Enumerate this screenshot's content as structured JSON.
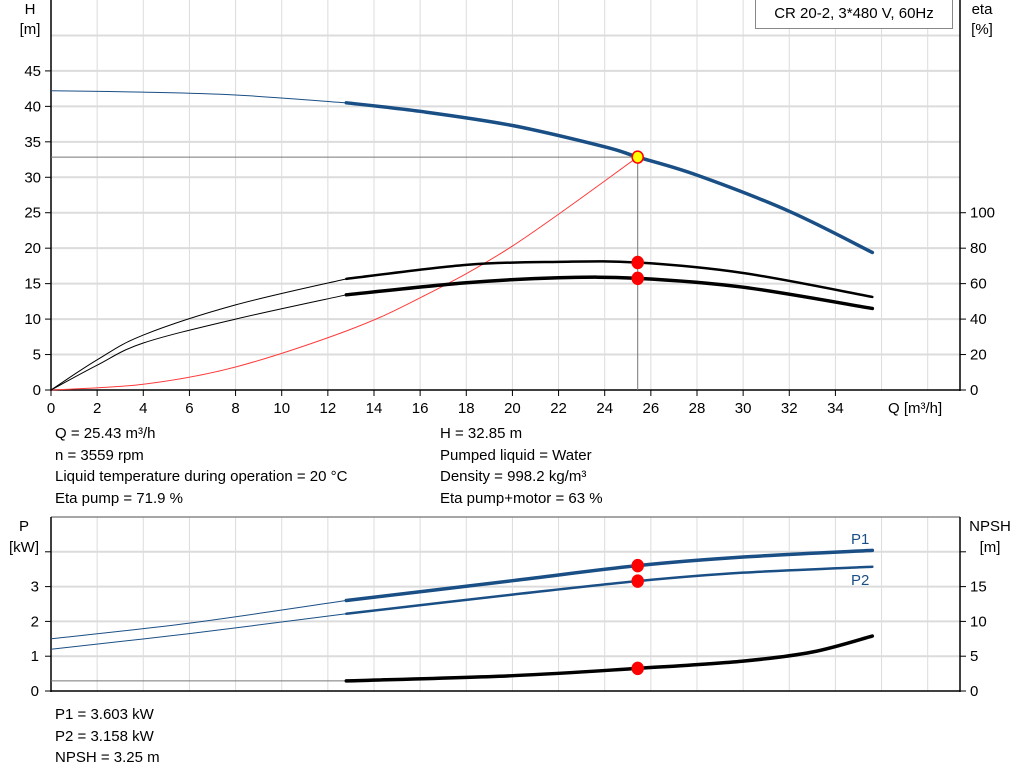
{
  "legend_title": "CR 20-2, 3*480 V, 60Hz",
  "colors": {
    "pump_curve": "#1a4f86",
    "efficiency": "#000000",
    "system_curve": "#ff3b3b",
    "point": "#ff0000",
    "duty_point_fill": "#ffff00",
    "grid": "#dcdcdc"
  },
  "info_top": {
    "left": [
      "Q = 25.43 m³/h",
      "n = 3559 rpm",
      "Liquid temperature during operation = 20 °C",
      "Eta pump = 71.9 %"
    ],
    "right": [
      "H = 32.85 m",
      "Pumped liquid = Water",
      "Density = 998.2 kg/m³",
      "Eta pump+motor = 63 %"
    ]
  },
  "info_bottom": [
    "P1 = 3.603 kW",
    "P2 = 3.158 kW",
    "NPSH = 3.25 m"
  ],
  "chart_data": [
    {
      "type": "line",
      "xlabel": "Q [m³/h]",
      "ylabel_left": [
        "H",
        "[m]"
      ],
      "ylabel_right": [
        "eta",
        "[%]"
      ],
      "xlim": [
        0,
        39.4
      ],
      "ylim_left": [
        0,
        55
      ],
      "ylim_right": [
        0,
        220
      ],
      "x_ticks": [
        0,
        2,
        4,
        6,
        8,
        10,
        12,
        14,
        16,
        18,
        20,
        22,
        24,
        26,
        28,
        30,
        32,
        34
      ],
      "y_ticks_left": [
        0,
        5,
        10,
        15,
        20,
        25,
        30,
        35,
        40,
        45
      ],
      "y_ticks_right": [
        0,
        20,
        40,
        60,
        80,
        100
      ],
      "grid": true,
      "operating_range_start": 12.8,
      "duty_point": {
        "Q": 25.43,
        "H": 32.85,
        "eta_pump": 71.9,
        "eta_pump_motor": 63
      },
      "series": [
        {
          "id": "H",
          "axis": "left",
          "points": [
            [
              0,
              42.2
            ],
            [
              4,
              42.0
            ],
            [
              8,
              41.6
            ],
            [
              12.8,
              40.5
            ],
            [
              16,
              39.3
            ],
            [
              20,
              37.3
            ],
            [
              24,
              34.3
            ],
            [
              25.43,
              32.85
            ],
            [
              28,
              30.3
            ],
            [
              32,
              25.2
            ],
            [
              35.6,
              19.4
            ]
          ]
        },
        {
          "id": "eta_pump",
          "axis": "right",
          "points": [
            [
              0,
              0
            ],
            [
              2,
              17
            ],
            [
              4,
              31
            ],
            [
              8,
              48
            ],
            [
              12.8,
              62.7
            ],
            [
              18,
              70.6
            ],
            [
              22,
              72.3
            ],
            [
              25.43,
              71.9
            ],
            [
              30,
              66
            ],
            [
              35.6,
              52.5
            ]
          ]
        },
        {
          "id": "eta_pump_motor",
          "axis": "right",
          "points": [
            [
              0,
              0
            ],
            [
              2,
              14
            ],
            [
              4,
              26.5
            ],
            [
              8,
              40
            ],
            [
              12.8,
              53.7
            ],
            [
              18,
              60.5
            ],
            [
              22,
              63.3
            ],
            [
              25.43,
              63
            ],
            [
              30,
              58
            ],
            [
              35.6,
              46
            ]
          ]
        },
        {
          "id": "system",
          "axis": "left",
          "thin": true,
          "points": [
            [
              0,
              0
            ],
            [
              4,
              0.81
            ],
            [
              8,
              3.25
            ],
            [
              12.8,
              8.32
            ],
            [
              16,
              13
            ],
            [
              20,
              20.3
            ],
            [
              25.43,
              32.85
            ]
          ]
        }
      ]
    },
    {
      "type": "line",
      "ylabel_left": [
        "P",
        "[kW]"
      ],
      "ylabel_right": [
        "NPSH",
        "[m]"
      ],
      "xlim": [
        0,
        39.4
      ],
      "ylim_left": [
        0,
        5
      ],
      "ylim_right": [
        0,
        25
      ],
      "y_ticks_left": [
        0,
        1,
        2,
        3,
        4
      ],
      "y_tick_labels_left": [
        "0",
        "1",
        "2",
        "3",
        ""
      ],
      "y_ticks_right": [
        0,
        5,
        10,
        15,
        20
      ],
      "y_tick_labels_right": [
        "0",
        "5",
        "10",
        "15",
        ""
      ],
      "grid": true,
      "operating_range_start": 12.8,
      "series": [
        {
          "id": "P1",
          "name": "P1",
          "axis": "left",
          "points": [
            [
              0,
              1.5
            ],
            [
              6,
              1.95
            ],
            [
              12.8,
              2.6
            ],
            [
              20,
              3.17
            ],
            [
              25.43,
              3.603
            ],
            [
              30,
              3.85
            ],
            [
              35.6,
              4.04
            ]
          ]
        },
        {
          "id": "P2",
          "name": "P2",
          "axis": "left",
          "points": [
            [
              0,
              1.2
            ],
            [
              6,
              1.65
            ],
            [
              12.8,
              2.22
            ],
            [
              20,
              2.77
            ],
            [
              25.43,
              3.158
            ],
            [
              30,
              3.4
            ],
            [
              35.6,
              3.57
            ]
          ]
        },
        {
          "id": "NPSH",
          "axis": "right",
          "points": [
            [
              0,
              1.45
            ],
            [
              12.8,
              1.45
            ],
            [
              20,
              2.2
            ],
            [
              25.43,
              3.25
            ],
            [
              30,
              4.3
            ],
            [
              33,
              5.6
            ],
            [
              35.6,
              7.9
            ]
          ]
        }
      ],
      "duty_point": {
        "Q": 25.43,
        "P1": 3.603,
        "P2": 3.158,
        "NPSH": 3.25
      }
    }
  ]
}
